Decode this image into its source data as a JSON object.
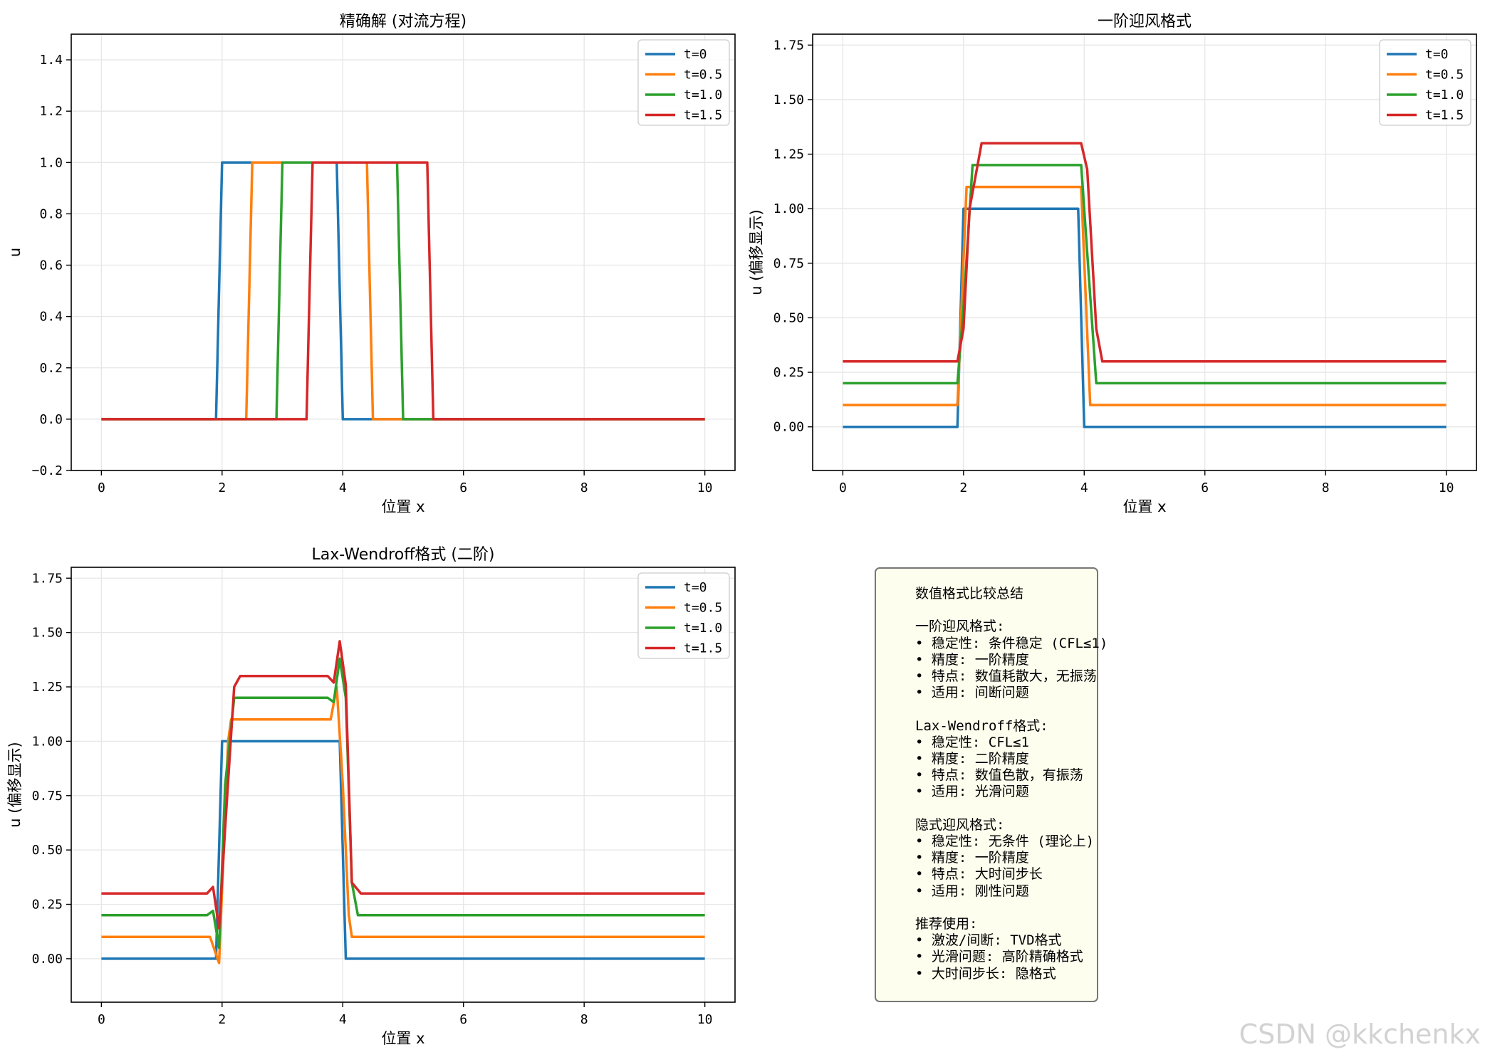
{
  "chart_data": [
    {
      "type": "line",
      "title": "精确解 (对流方程)",
      "xlabel": "位置 x",
      "ylabel": "u",
      "xlim": [
        -0.5,
        10.5
      ],
      "ylim": [
        -0.2,
        1.5
      ],
      "xticks": [
        "0",
        "2",
        "4",
        "6",
        "8",
        "10"
      ],
      "yticks": [
        "−0.2",
        "0.0",
        "0.2",
        "0.4",
        "0.6",
        "0.8",
        "1.0",
        "1.2",
        "1.4"
      ],
      "grid": true,
      "legend": "top-right",
      "series": [
        {
          "name": "t=0",
          "color": "#1f77b4",
          "points": [
            [
              0,
              0
            ],
            [
              1.9,
              0
            ],
            [
              2.0,
              1
            ],
            [
              3.9,
              1
            ],
            [
              4.0,
              0
            ],
            [
              10,
              0
            ]
          ]
        },
        {
          "name": "t=0.5",
          "color": "#ff7f0e",
          "points": [
            [
              0,
              0
            ],
            [
              2.4,
              0
            ],
            [
              2.5,
              1
            ],
            [
              4.4,
              1
            ],
            [
              4.5,
              0
            ],
            [
              10,
              0
            ]
          ]
        },
        {
          "name": "t=1.0",
          "color": "#2ca02c",
          "points": [
            [
              0,
              0
            ],
            [
              2.9,
              0
            ],
            [
              3.0,
              1
            ],
            [
              4.9,
              1
            ],
            [
              5.0,
              0
            ],
            [
              10,
              0
            ]
          ]
        },
        {
          "name": "t=1.5",
          "color": "#d62728",
          "points": [
            [
              0,
              0
            ],
            [
              3.4,
              0
            ],
            [
              3.5,
              1
            ],
            [
              5.4,
              1
            ],
            [
              5.5,
              0
            ],
            [
              10,
              0
            ]
          ]
        }
      ]
    },
    {
      "type": "line",
      "title": "一阶迎风格式",
      "xlabel": "位置 x",
      "ylabel": "u (偏移显示)",
      "xlim": [
        -0.5,
        10.5
      ],
      "ylim": [
        -0.2,
        1.8
      ],
      "xticks": [
        "0",
        "2",
        "4",
        "6",
        "8",
        "10"
      ],
      "yticks": [
        "0.00",
        "0.25",
        "0.50",
        "0.75",
        "1.00",
        "1.25",
        "1.50",
        "1.75"
      ],
      "grid": true,
      "legend": "top-right",
      "series": [
        {
          "name": "t=0",
          "color": "#1f77b4",
          "points": [
            [
              0,
              0
            ],
            [
              1.9,
              0
            ],
            [
              2.0,
              1
            ],
            [
              3.9,
              1
            ],
            [
              4.0,
              0
            ],
            [
              10,
              0
            ]
          ]
        },
        {
          "name": "t=0.5",
          "color": "#ff7f0e",
          "points": [
            [
              0,
              0.1
            ],
            [
              1.9,
              0.1
            ],
            [
              2.05,
              1.1
            ],
            [
              3.95,
              1.1
            ],
            [
              4.1,
              0.1
            ],
            [
              10,
              0.1
            ]
          ]
        },
        {
          "name": "t=1.0",
          "color": "#2ca02c",
          "points": [
            [
              0,
              0.2
            ],
            [
              1.9,
              0.2
            ],
            [
              2.0,
              0.55
            ],
            [
              2.15,
              1.2
            ],
            [
              3.95,
              1.2
            ],
            [
              4.1,
              0.6
            ],
            [
              4.2,
              0.2
            ],
            [
              10,
              0.2
            ]
          ]
        },
        {
          "name": "t=1.5",
          "color": "#d62728",
          "points": [
            [
              0,
              0.3
            ],
            [
              1.9,
              0.3
            ],
            [
              2.0,
              0.45
            ],
            [
              2.1,
              1.0
            ],
            [
              2.3,
              1.3
            ],
            [
              3.95,
              1.3
            ],
            [
              4.05,
              1.18
            ],
            [
              4.2,
              0.45
            ],
            [
              4.3,
              0.3
            ],
            [
              10,
              0.3
            ]
          ]
        }
      ]
    },
    {
      "type": "line",
      "title": "Lax-Wendroff格式 (二阶)",
      "xlabel": "位置 x",
      "ylabel": "u (偏移显示)",
      "xlim": [
        -0.5,
        10.5
      ],
      "ylim": [
        -0.2,
        1.8
      ],
      "xticks": [
        "0",
        "2",
        "4",
        "6",
        "8",
        "10"
      ],
      "yticks": [
        "0.00",
        "0.25",
        "0.50",
        "0.75",
        "1.00",
        "1.25",
        "1.50",
        "1.75"
      ],
      "grid": true,
      "legend": "top-right",
      "series": [
        {
          "name": "t=0",
          "color": "#1f77b4",
          "points": [
            [
              0,
              0
            ],
            [
              1.9,
              0
            ],
            [
              2.0,
              1
            ],
            [
              3.95,
              1
            ],
            [
              4.05,
              0
            ],
            [
              10,
              0
            ]
          ]
        },
        {
          "name": "t=0.5",
          "color": "#ff7f0e",
          "points": [
            [
              0,
              0.1
            ],
            [
              1.8,
              0.1
            ],
            [
              1.95,
              -0.02
            ],
            [
              2.1,
              1.0
            ],
            [
              2.15,
              1.1
            ],
            [
              3.8,
              1.1
            ],
            [
              3.9,
              1.25
            ],
            [
              4.0,
              0.8
            ],
            [
              4.1,
              0.2
            ],
            [
              4.15,
              0.1
            ],
            [
              10,
              0.1
            ]
          ]
        },
        {
          "name": "t=1.0",
          "color": "#2ca02c",
          "points": [
            [
              0,
              0.2
            ],
            [
              1.75,
              0.2
            ],
            [
              1.85,
              0.22
            ],
            [
              1.95,
              0.05
            ],
            [
              2.05,
              0.8
            ],
            [
              2.2,
              1.2
            ],
            [
              3.75,
              1.2
            ],
            [
              3.85,
              1.18
            ],
            [
              3.95,
              1.38
            ],
            [
              4.05,
              1.2
            ],
            [
              4.15,
              0.35
            ],
            [
              4.25,
              0.2
            ],
            [
              10,
              0.2
            ]
          ]
        },
        {
          "name": "t=1.5",
          "color": "#d62728",
          "points": [
            [
              0,
              0.3
            ],
            [
              1.75,
              0.3
            ],
            [
              1.85,
              0.33
            ],
            [
              1.95,
              0.14
            ],
            [
              2.05,
              0.6
            ],
            [
              2.2,
              1.25
            ],
            [
              2.3,
              1.3
            ],
            [
              3.75,
              1.3
            ],
            [
              3.85,
              1.27
            ],
            [
              3.95,
              1.46
            ],
            [
              4.05,
              1.26
            ],
            [
              4.15,
              0.35
            ],
            [
              4.3,
              0.3
            ],
            [
              10,
              0.3
            ]
          ]
        }
      ]
    }
  ],
  "info_box": {
    "lines": [
      "数值格式比较总结",
      "",
      "一阶迎风格式:",
      "• 稳定性: 条件稳定 (CFL≤1)",
      "• 精度: 一阶精度",
      "• 特点: 数值耗散大，无振荡",
      "• 适用: 间断问题",
      "",
      "Lax-Wendroff格式:",
      "• 稳定性: CFL≤1",
      "• 精度: 二阶精度",
      "• 特点: 数值色散，有振荡",
      "• 适用: 光滑问题",
      "",
      "隐式迎风格式:",
      "• 稳定性: 无条件 (理论上)",
      "• 精度: 一阶精度",
      "• 特点: 大时间步长",
      "• 适用: 刚性问题",
      "",
      "推荐使用:",
      "• 激波/间断: TVD格式",
      "• 光滑问题: 高阶精确格式",
      "• 大时间步长: 隐格式"
    ]
  },
  "watermark": "CSDN @kkchenkx"
}
